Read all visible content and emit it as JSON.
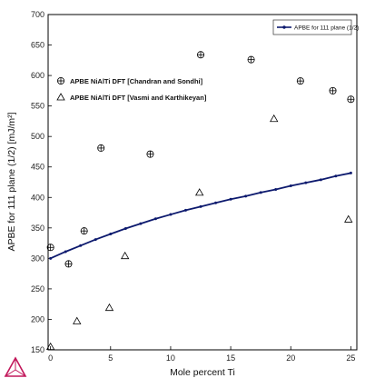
{
  "colors": {
    "series_line": "#0d1a6e",
    "frame": "#000000",
    "background": "#ffffff",
    "logo": "#c2185b"
  },
  "icons": {
    "logo": "thermo-calc-logo-icon"
  },
  "chart_data": {
    "type": "scatter",
    "title": "",
    "xlabel": "Mole percent Ti",
    "ylabel": "APBE for 111 plane (1/2) [mJ/m²]",
    "xlim": [
      -0.2,
      25.5
    ],
    "ylim": [
      150,
      700
    ],
    "xticks": [
      0,
      5,
      10,
      15,
      20,
      25
    ],
    "yticks": [
      150,
      200,
      250,
      300,
      350,
      400,
      450,
      500,
      550,
      600,
      650,
      700
    ],
    "grid": false,
    "legend_position": "top-right",
    "series": [
      {
        "name": "APBE for 111 plane (1/2)",
        "kind": "line",
        "x": [
          0,
          1.25,
          2.5,
          3.75,
          5,
          6.25,
          7.5,
          8.75,
          10,
          11.25,
          12.5,
          13.75,
          15,
          16.25,
          17.5,
          18.75,
          20,
          21.25,
          22.5,
          23.75,
          25
        ],
        "y": [
          300,
          311,
          321,
          331,
          340,
          349,
          357,
          365,
          372,
          379,
          385,
          391,
          397,
          402,
          408,
          413,
          419,
          424,
          429,
          435,
          440
        ]
      },
      {
        "name": "APBE NiAlTi DFT [Chandran and Sondhi]",
        "kind": "marker-circle-plus",
        "x": [
          0,
          1.5,
          2.8,
          4.2,
          8.3,
          12.5,
          16.7,
          20.8,
          23.5,
          25
        ],
        "y": [
          318,
          291,
          345,
          481,
          471,
          634,
          626,
          591,
          575,
          561
        ]
      },
      {
        "name": "APBE NiAlTi DFT [Vasmi and Karthikeyan]",
        "kind": "marker-triangle",
        "x": [
          0,
          2.2,
          4.9,
          6.2,
          12.4,
          18.6,
          24.8
        ],
        "y": [
          155,
          197,
          219,
          304,
          408,
          529,
          364
        ]
      }
    ],
    "annotations": [
      "APBE NiAlTi DFT [Chandran and Sondhi]",
      "APBE NiAlTi DFT [Vasmi and Karthikeyan]"
    ]
  }
}
